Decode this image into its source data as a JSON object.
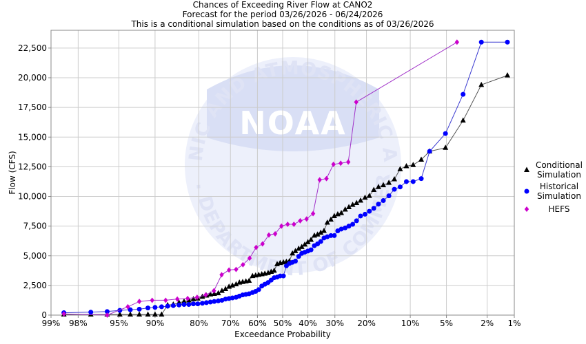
{
  "chart_data": {
    "type": "scatter",
    "title": "Chances of Exceeding River Flow at CANO2",
    "subtitle_1": "Forecast for the period 03/26/2026 - 06/24/2026",
    "subtitle_2": "This is a conditional simulation based on the conditions as of 03/26/2026",
    "xlabel": "Exceedance Probability",
    "ylabel": "Flow (CFS)",
    "x_scale": "normal-probability",
    "x_ticks": [
      {
        "p": 99,
        "label": "99%"
      },
      {
        "p": 98,
        "label": "98%"
      },
      {
        "p": 95,
        "label": "95%"
      },
      {
        "p": 90,
        "label": "90%"
      },
      {
        "p": 80,
        "label": "80%"
      },
      {
        "p": 70,
        "label": "70%"
      },
      {
        "p": 60,
        "label": "60%"
      },
      {
        "p": 50,
        "label": "50%"
      },
      {
        "p": 40,
        "label": "40%"
      },
      {
        "p": 30,
        "label": "30%"
      },
      {
        "p": 20,
        "label": "20%"
      },
      {
        "p": 10,
        "label": "10%"
      },
      {
        "p": 5,
        "label": "5%"
      },
      {
        "p": 2,
        "label": "2%"
      },
      {
        "p": 1,
        "label": "1%"
      }
    ],
    "xlim": [
      99,
      1
    ],
    "ylim": [
      0,
      24000
    ],
    "y_ticks": [
      {
        "v": 0,
        "label": "0"
      },
      {
        "v": 2500,
        "label": "2,500"
      },
      {
        "v": 5000,
        "label": "5,000"
      },
      {
        "v": 7500,
        "label": "7,500"
      },
      {
        "v": 10000,
        "label": "10,000"
      },
      {
        "v": 12500,
        "label": "12,500"
      },
      {
        "v": 15000,
        "label": "15,000"
      },
      {
        "v": 17500,
        "label": "17,500"
      },
      {
        "v": 20000,
        "label": "20,000"
      },
      {
        "v": 22500,
        "label": "22,500"
      }
    ],
    "grid": true,
    "legend_position": "right",
    "series": [
      {
        "name": "Conditional Simulation",
        "legend_lines": [
          "Conditional",
          "Simulation"
        ],
        "marker": "triangle",
        "color": "#000000",
        "line_color": "#555555",
        "points": [
          [
            98.6,
            50
          ],
          [
            97.3,
            50
          ],
          [
            96.1,
            50
          ],
          [
            94.9,
            50
          ],
          [
            93.7,
            50
          ],
          [
            92.5,
            50
          ],
          [
            91.2,
            50
          ],
          [
            90.0,
            50
          ],
          [
            88.8,
            50
          ],
          [
            87.6,
            850
          ],
          [
            86.4,
            900
          ],
          [
            85.1,
            1050
          ],
          [
            83.9,
            1150
          ],
          [
            82.7,
            1250
          ],
          [
            81.5,
            1350
          ],
          [
            80.3,
            1400
          ],
          [
            79.0,
            1550
          ],
          [
            77.8,
            1650
          ],
          [
            76.6,
            1750
          ],
          [
            75.4,
            1800
          ],
          [
            74.1,
            1850
          ],
          [
            72.9,
            2050
          ],
          [
            71.7,
            2200
          ],
          [
            70.5,
            2400
          ],
          [
            69.3,
            2500
          ],
          [
            68.0,
            2600
          ],
          [
            66.8,
            2750
          ],
          [
            65.6,
            2800
          ],
          [
            64.4,
            2850
          ],
          [
            63.2,
            2900
          ],
          [
            61.9,
            3300
          ],
          [
            60.7,
            3350
          ],
          [
            59.5,
            3400
          ],
          [
            58.3,
            3450
          ],
          [
            57.1,
            3500
          ],
          [
            55.8,
            3550
          ],
          [
            54.6,
            3650
          ],
          [
            53.4,
            3750
          ],
          [
            52.2,
            4300
          ],
          [
            51.0,
            4400
          ],
          [
            49.7,
            4450
          ],
          [
            48.5,
            4500
          ],
          [
            47.3,
            4550
          ],
          [
            46.1,
            5200
          ],
          [
            44.9,
            5400
          ],
          [
            43.6,
            5600
          ],
          [
            42.4,
            5750
          ],
          [
            41.2,
            5950
          ],
          [
            40.0,
            6150
          ],
          [
            38.8,
            6350
          ],
          [
            37.5,
            6700
          ],
          [
            36.3,
            6800
          ],
          [
            35.1,
            6950
          ],
          [
            33.9,
            7100
          ],
          [
            32.7,
            7800
          ],
          [
            31.4,
            8050
          ],
          [
            30.2,
            8350
          ],
          [
            29.0,
            8500
          ],
          [
            27.8,
            8600
          ],
          [
            26.5,
            8900
          ],
          [
            25.3,
            9100
          ],
          [
            24.1,
            9300
          ],
          [
            22.9,
            9450
          ],
          [
            21.7,
            9650
          ],
          [
            20.4,
            9900
          ],
          [
            19.2,
            10050
          ],
          [
            18.0,
            10550
          ],
          [
            16.8,
            10800
          ],
          [
            15.6,
            10950
          ],
          [
            14.3,
            11150
          ],
          [
            13.1,
            11450
          ],
          [
            11.9,
            12300
          ],
          [
            10.7,
            12550
          ],
          [
            9.5,
            12650
          ],
          [
            8.2,
            13100
          ],
          [
            7.0,
            13800
          ],
          [
            5.1,
            14100
          ],
          [
            3.5,
            16400
          ],
          [
            2.3,
            19400
          ],
          [
            1.2,
            20200
          ]
        ]
      },
      {
        "name": "Historical Simulation",
        "legend_lines": [
          "Historical",
          "Simulation"
        ],
        "marker": "circle",
        "color": "#0000ff",
        "line_color": "#3a3ad0",
        "points": [
          [
            98.6,
            200
          ],
          [
            97.3,
            250
          ],
          [
            96.1,
            300
          ],
          [
            94.9,
            400
          ],
          [
            93.7,
            450
          ],
          [
            92.5,
            500
          ],
          [
            91.2,
            600
          ],
          [
            90.0,
            650
          ],
          [
            88.8,
            700
          ],
          [
            87.6,
            750
          ],
          [
            86.4,
            800
          ],
          [
            85.1,
            850
          ],
          [
            83.9,
            900
          ],
          [
            82.7,
            900
          ],
          [
            81.5,
            950
          ],
          [
            80.3,
            950
          ],
          [
            79.0,
            1000
          ],
          [
            77.8,
            1050
          ],
          [
            76.6,
            1100
          ],
          [
            75.4,
            1150
          ],
          [
            74.1,
            1200
          ],
          [
            72.9,
            1250
          ],
          [
            71.7,
            1350
          ],
          [
            70.5,
            1400
          ],
          [
            69.3,
            1450
          ],
          [
            68.0,
            1500
          ],
          [
            66.8,
            1600
          ],
          [
            65.6,
            1700
          ],
          [
            64.4,
            1750
          ],
          [
            63.2,
            1800
          ],
          [
            61.9,
            1900
          ],
          [
            60.7,
            2000
          ],
          [
            59.5,
            2150
          ],
          [
            58.3,
            2450
          ],
          [
            57.1,
            2600
          ],
          [
            55.8,
            2750
          ],
          [
            54.6,
            2950
          ],
          [
            53.4,
            3150
          ],
          [
            52.2,
            3200
          ],
          [
            51.0,
            3300
          ],
          [
            49.7,
            3300
          ],
          [
            48.5,
            4150
          ],
          [
            47.3,
            4350
          ],
          [
            46.1,
            4450
          ],
          [
            44.9,
            4550
          ],
          [
            43.6,
            4950
          ],
          [
            42.4,
            5200
          ],
          [
            41.2,
            5300
          ],
          [
            40.0,
            5400
          ],
          [
            38.8,
            5500
          ],
          [
            37.5,
            5850
          ],
          [
            36.3,
            6000
          ],
          [
            35.1,
            6200
          ],
          [
            33.9,
            6500
          ],
          [
            32.7,
            6600
          ],
          [
            31.4,
            6700
          ],
          [
            30.2,
            6700
          ],
          [
            29.0,
            7100
          ],
          [
            27.8,
            7250
          ],
          [
            26.5,
            7350
          ],
          [
            25.3,
            7500
          ],
          [
            24.1,
            7650
          ],
          [
            22.9,
            7950
          ],
          [
            21.7,
            8350
          ],
          [
            20.4,
            8500
          ],
          [
            19.2,
            8750
          ],
          [
            18.0,
            9000
          ],
          [
            16.8,
            9350
          ],
          [
            15.6,
            9650
          ],
          [
            14.3,
            10050
          ],
          [
            13.1,
            10600
          ],
          [
            11.9,
            10800
          ],
          [
            10.7,
            11250
          ],
          [
            9.5,
            11250
          ],
          [
            8.2,
            11500
          ],
          [
            7.0,
            13800
          ],
          [
            5.1,
            15300
          ],
          [
            3.5,
            18600
          ],
          [
            2.3,
            23000
          ],
          [
            1.2,
            23000
          ]
        ]
      },
      {
        "name": "HEFS",
        "legend_lines": [
          "HEFS"
        ],
        "marker": "diamond",
        "color": "#cc00cc",
        "line_color": "#a030c8",
        "points": [
          [
            98.6,
            100
          ],
          [
            96.1,
            0
          ],
          [
            94.0,
            700
          ],
          [
            92.5,
            1150
          ],
          [
            90.5,
            1250
          ],
          [
            88.0,
            1250
          ],
          [
            85.5,
            1350
          ],
          [
            83.0,
            1400
          ],
          [
            80.5,
            1500
          ],
          [
            78.0,
            1700
          ],
          [
            75.5,
            2050
          ],
          [
            73.0,
            3400
          ],
          [
            70.5,
            3800
          ],
          [
            68.0,
            3850
          ],
          [
            65.5,
            4250
          ],
          [
            63.0,
            4800
          ],
          [
            60.5,
            5700
          ],
          [
            58.0,
            6000
          ],
          [
            55.5,
            6750
          ],
          [
            53.0,
            6850
          ],
          [
            50.5,
            7500
          ],
          [
            48.0,
            7650
          ],
          [
            45.5,
            7650
          ],
          [
            43.0,
            7950
          ],
          [
            40.5,
            8100
          ],
          [
            38.0,
            8550
          ],
          [
            35.5,
            11400
          ],
          [
            33.0,
            11500
          ],
          [
            30.5,
            12700
          ],
          [
            28.0,
            12800
          ],
          [
            25.5,
            12900
          ],
          [
            23.0,
            17950
          ],
          [
            4.0,
            23000
          ]
        ]
      }
    ],
    "watermark": {
      "top_text": "NATIONAL OCEANIC AND ATMOSPHERIC ADMINISTRATION",
      "logo_text": "NOAA",
      "bottom_text": "U.S. DEPARTMENT OF COMMERCE"
    }
  }
}
